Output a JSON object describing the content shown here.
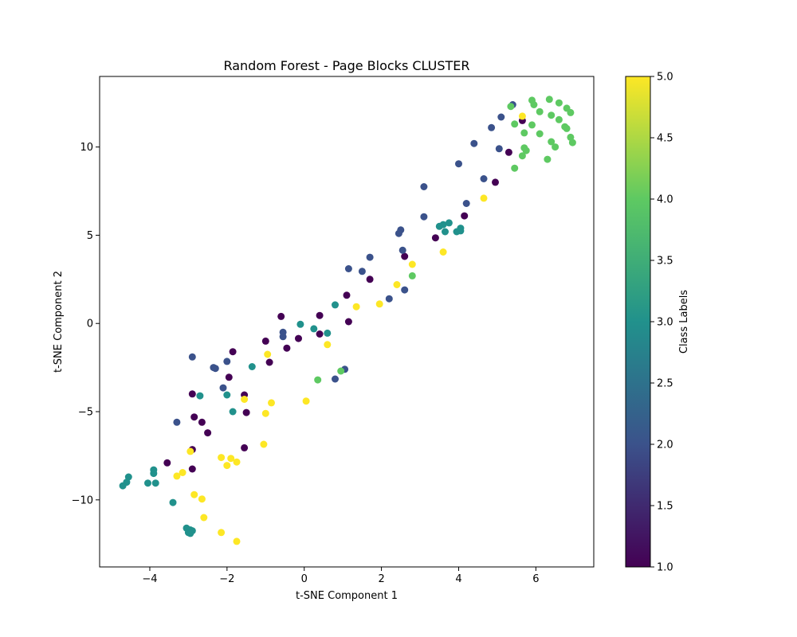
{
  "chart_data": {
    "type": "scatter",
    "title": "Random Forest - Page Blocks CLUSTER",
    "xlabel": "t-SNE Component 1",
    "ylabel": "t-SNE Component 2",
    "xlim": [
      -5.3,
      7.5
    ],
    "ylim": [
      -13.8,
      14.0
    ],
    "xticks": [
      -4,
      -2,
      0,
      2,
      4,
      6
    ],
    "yticks": [
      -10,
      -5,
      0,
      5,
      10
    ],
    "grid": false,
    "colorbar": {
      "label": "Class Labels",
      "range": [
        1.0,
        5.0
      ],
      "ticks": [
        1.0,
        1.5,
        2.0,
        2.5,
        3.0,
        3.5,
        4.0,
        4.5,
        5.0
      ],
      "tick_labels": [
        "1.0",
        "1.5",
        "2.0",
        "2.5",
        "3.0",
        "3.5",
        "4.0",
        "4.5",
        "5.0"
      ],
      "colormap": "viridis",
      "colors": [
        "#440154",
        "#3b528b",
        "#21918c",
        "#5ec962",
        "#fde725"
      ]
    },
    "points": [
      {
        "x": 5.65,
        "y": 11.5,
        "class": 1
      },
      {
        "x": 5.3,
        "y": 9.7,
        "class": 1
      },
      {
        "x": 4.95,
        "y": 8.0,
        "class": 1
      },
      {
        "x": 4.15,
        "y": 6.1,
        "class": 1
      },
      {
        "x": 3.4,
        "y": 4.85,
        "class": 1
      },
      {
        "x": 2.6,
        "y": 3.8,
        "class": 1
      },
      {
        "x": 1.7,
        "y": 2.5,
        "class": 1
      },
      {
        "x": 1.1,
        "y": 1.6,
        "class": 1
      },
      {
        "x": 1.15,
        "y": 0.1,
        "class": 1
      },
      {
        "x": 0.4,
        "y": 0.45,
        "class": 1
      },
      {
        "x": 0.4,
        "y": -0.6,
        "class": 1
      },
      {
        "x": -0.15,
        "y": -0.85,
        "class": 1
      },
      {
        "x": -0.6,
        "y": 0.4,
        "class": 1
      },
      {
        "x": -0.45,
        "y": -1.4,
        "class": 1
      },
      {
        "x": -1.0,
        "y": -1.0,
        "class": 1
      },
      {
        "x": -0.9,
        "y": -2.2,
        "class": 1
      },
      {
        "x": -1.85,
        "y": -1.6,
        "class": 1
      },
      {
        "x": -1.95,
        "y": -3.05,
        "class": 1
      },
      {
        "x": -1.55,
        "y": -4.05,
        "class": 1
      },
      {
        "x": -1.5,
        "y": -5.05,
        "class": 1
      },
      {
        "x": -2.9,
        "y": -4.0,
        "class": 1
      },
      {
        "x": -2.85,
        "y": -5.3,
        "class": 1
      },
      {
        "x": -2.65,
        "y": -5.6,
        "class": 1
      },
      {
        "x": -2.5,
        "y": -6.2,
        "class": 1
      },
      {
        "x": -2.9,
        "y": -7.15,
        "class": 1
      },
      {
        "x": -1.55,
        "y": -7.05,
        "class": 1
      },
      {
        "x": -3.55,
        "y": -7.9,
        "class": 1
      },
      {
        "x": -2.9,
        "y": -8.25,
        "class": 1
      },
      {
        "x": 5.4,
        "y": 12.4,
        "class": 2
      },
      {
        "x": 5.1,
        "y": 11.7,
        "class": 2
      },
      {
        "x": 4.85,
        "y": 11.1,
        "class": 2
      },
      {
        "x": 5.05,
        "y": 9.9,
        "class": 2
      },
      {
        "x": 4.4,
        "y": 10.2,
        "class": 2
      },
      {
        "x": 4.0,
        "y": 9.05,
        "class": 2
      },
      {
        "x": 4.65,
        "y": 8.2,
        "class": 2
      },
      {
        "x": 3.1,
        "y": 7.75,
        "class": 2
      },
      {
        "x": 4.2,
        "y": 6.8,
        "class": 2
      },
      {
        "x": 3.1,
        "y": 6.05,
        "class": 2
      },
      {
        "x": 2.5,
        "y": 5.3,
        "class": 2
      },
      {
        "x": 2.45,
        "y": 5.1,
        "class": 2
      },
      {
        "x": 2.55,
        "y": 4.15,
        "class": 2
      },
      {
        "x": 1.7,
        "y": 3.75,
        "class": 2
      },
      {
        "x": 1.15,
        "y": 3.1,
        "class": 2
      },
      {
        "x": 1.5,
        "y": 2.95,
        "class": 2
      },
      {
        "x": 2.6,
        "y": 1.9,
        "class": 2
      },
      {
        "x": 2.2,
        "y": 1.4,
        "class": 2
      },
      {
        "x": -0.55,
        "y": -0.5,
        "class": 2
      },
      {
        "x": -0.55,
        "y": -0.75,
        "class": 2
      },
      {
        "x": 1.05,
        "y": -2.6,
        "class": 2
      },
      {
        "x": 0.8,
        "y": -3.15,
        "class": 2
      },
      {
        "x": -2.9,
        "y": -1.9,
        "class": 2
      },
      {
        "x": -2.35,
        "y": -2.5,
        "class": 2
      },
      {
        "x": -2.3,
        "y": -2.55,
        "class": 2
      },
      {
        "x": -2.0,
        "y": -2.15,
        "class": 2
      },
      {
        "x": -2.1,
        "y": -3.65,
        "class": 2
      },
      {
        "x": -3.3,
        "y": -5.6,
        "class": 2
      },
      {
        "x": 3.5,
        "y": 5.5,
        "class": 3
      },
      {
        "x": 3.6,
        "y": 5.6,
        "class": 3
      },
      {
        "x": 3.75,
        "y": 5.7,
        "class": 3
      },
      {
        "x": 3.65,
        "y": 5.2,
        "class": 3
      },
      {
        "x": 4.05,
        "y": 5.4,
        "class": 3
      },
      {
        "x": 4.05,
        "y": 5.25,
        "class": 3
      },
      {
        "x": 3.95,
        "y": 5.2,
        "class": 3
      },
      {
        "x": 0.8,
        "y": 1.05,
        "class": 3
      },
      {
        "x": -0.1,
        "y": -0.05,
        "class": 3
      },
      {
        "x": 0.25,
        "y": -0.3,
        "class": 3
      },
      {
        "x": 0.6,
        "y": -0.55,
        "class": 3
      },
      {
        "x": -1.35,
        "y": -2.45,
        "class": 3
      },
      {
        "x": -2.7,
        "y": -4.1,
        "class": 3
      },
      {
        "x": -2.0,
        "y": -4.05,
        "class": 3
      },
      {
        "x": -1.85,
        "y": -5.0,
        "class": 3
      },
      {
        "x": -4.55,
        "y": -8.7,
        "class": 3
      },
      {
        "x": -4.6,
        "y": -9.0,
        "class": 3
      },
      {
        "x": -4.7,
        "y": -9.2,
        "class": 3
      },
      {
        "x": -3.9,
        "y": -8.3,
        "class": 3
      },
      {
        "x": -3.9,
        "y": -8.5,
        "class": 3
      },
      {
        "x": -4.05,
        "y": -9.05,
        "class": 3
      },
      {
        "x": -3.85,
        "y": -9.05,
        "class": 3
      },
      {
        "x": -3.4,
        "y": -10.15,
        "class": 3
      },
      {
        "x": -3.05,
        "y": -11.6,
        "class": 3
      },
      {
        "x": -2.95,
        "y": -11.7,
        "class": 3
      },
      {
        "x": -2.9,
        "y": -11.75,
        "class": 3
      },
      {
        "x": -3.0,
        "y": -11.85,
        "class": 3
      },
      {
        "x": -2.95,
        "y": -11.9,
        "class": 3
      },
      {
        "x": 5.35,
        "y": 12.3,
        "class": 4
      },
      {
        "x": 5.9,
        "y": 12.65,
        "class": 4
      },
      {
        "x": 5.95,
        "y": 12.4,
        "class": 4
      },
      {
        "x": 6.35,
        "y": 12.7,
        "class": 4
      },
      {
        "x": 6.6,
        "y": 12.5,
        "class": 4
      },
      {
        "x": 6.1,
        "y": 12.0,
        "class": 4
      },
      {
        "x": 6.4,
        "y": 11.8,
        "class": 4
      },
      {
        "x": 6.8,
        "y": 12.2,
        "class": 4
      },
      {
        "x": 6.9,
        "y": 11.95,
        "class": 4
      },
      {
        "x": 5.45,
        "y": 11.3,
        "class": 4
      },
      {
        "x": 5.9,
        "y": 11.25,
        "class": 4
      },
      {
        "x": 6.6,
        "y": 11.55,
        "class": 4
      },
      {
        "x": 6.75,
        "y": 11.15,
        "class": 4
      },
      {
        "x": 6.8,
        "y": 11.05,
        "class": 4
      },
      {
        "x": 5.7,
        "y": 10.8,
        "class": 4
      },
      {
        "x": 6.1,
        "y": 10.75,
        "class": 4
      },
      {
        "x": 6.9,
        "y": 10.55,
        "class": 4
      },
      {
        "x": 6.95,
        "y": 10.25,
        "class": 4
      },
      {
        "x": 6.4,
        "y": 10.3,
        "class": 4
      },
      {
        "x": 6.5,
        "y": 10.0,
        "class": 4
      },
      {
        "x": 5.7,
        "y": 9.95,
        "class": 4
      },
      {
        "x": 5.75,
        "y": 9.8,
        "class": 4
      },
      {
        "x": 5.65,
        "y": 9.5,
        "class": 4
      },
      {
        "x": 6.3,
        "y": 9.3,
        "class": 4
      },
      {
        "x": 5.45,
        "y": 8.8,
        "class": 4
      },
      {
        "x": 2.8,
        "y": 2.7,
        "class": 4
      },
      {
        "x": 0.35,
        "y": -3.2,
        "class": 4
      },
      {
        "x": 0.95,
        "y": -2.7,
        "class": 4
      },
      {
        "x": 5.65,
        "y": 11.75,
        "class": 5
      },
      {
        "x": 4.65,
        "y": 7.1,
        "class": 5
      },
      {
        "x": 3.6,
        "y": 4.05,
        "class": 5
      },
      {
        "x": 2.8,
        "y": 3.35,
        "class": 5
      },
      {
        "x": 2.4,
        "y": 2.2,
        "class": 5
      },
      {
        "x": 1.95,
        "y": 1.1,
        "class": 5
      },
      {
        "x": 1.35,
        "y": 0.95,
        "class": 5
      },
      {
        "x": 0.6,
        "y": -1.2,
        "class": 5
      },
      {
        "x": -0.95,
        "y": -1.75,
        "class": 5
      },
      {
        "x": 0.05,
        "y": -4.4,
        "class": 5
      },
      {
        "x": -0.85,
        "y": -4.5,
        "class": 5
      },
      {
        "x": -1.55,
        "y": -4.3,
        "class": 5
      },
      {
        "x": -1.0,
        "y": -5.1,
        "class": 5
      },
      {
        "x": -1.05,
        "y": -6.85,
        "class": 5
      },
      {
        "x": -2.15,
        "y": -7.6,
        "class": 5
      },
      {
        "x": -1.9,
        "y": -7.65,
        "class": 5
      },
      {
        "x": -1.75,
        "y": -7.85,
        "class": 5
      },
      {
        "x": -2.0,
        "y": -8.05,
        "class": 5
      },
      {
        "x": -2.95,
        "y": -7.25,
        "class": 5
      },
      {
        "x": -3.15,
        "y": -8.45,
        "class": 5
      },
      {
        "x": -3.3,
        "y": -8.65,
        "class": 5
      },
      {
        "x": -2.85,
        "y": -9.7,
        "class": 5
      },
      {
        "x": -2.65,
        "y": -9.95,
        "class": 5
      },
      {
        "x": -2.6,
        "y": -11.0,
        "class": 5
      },
      {
        "x": -2.15,
        "y": -11.85,
        "class": 5
      },
      {
        "x": -1.75,
        "y": -12.35,
        "class": 5
      }
    ]
  }
}
